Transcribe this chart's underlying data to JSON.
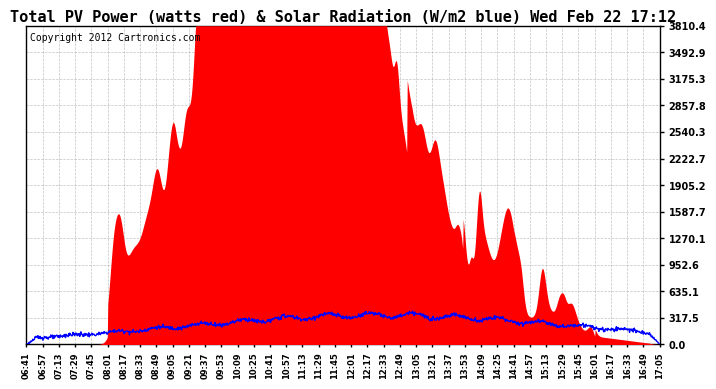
{
  "title": "Total PV Power (watts red) & Solar Radiation (W/m2 blue) Wed Feb 22 17:12",
  "copyright": "Copyright 2012 Cartronics.com",
  "y_max": 3810.4,
  "y_ticks": [
    0.0,
    317.5,
    635.1,
    952.6,
    1270.1,
    1587.7,
    1905.2,
    2222.7,
    2540.3,
    2857.8,
    3175.3,
    3492.9,
    3810.4
  ],
  "x_labels": [
    "06:41",
    "06:57",
    "07:13",
    "07:29",
    "07:45",
    "08:01",
    "08:17",
    "08:33",
    "08:49",
    "09:05",
    "09:21",
    "09:37",
    "09:53",
    "10:09",
    "10:25",
    "10:41",
    "10:57",
    "11:13",
    "11:29",
    "11:45",
    "12:01",
    "12:17",
    "12:33",
    "12:49",
    "13:05",
    "13:21",
    "13:37",
    "13:53",
    "14:09",
    "14:25",
    "14:41",
    "14:57",
    "15:13",
    "15:29",
    "15:45",
    "16:01",
    "16:17",
    "16:33",
    "16:49",
    "17:05"
  ],
  "pv_color": "#ff0000",
  "solar_color": "#0000ff",
  "background_color": "#ffffff",
  "grid_color": "#aaaaaa",
  "title_fontsize": 11,
  "copyright_fontsize": 7
}
